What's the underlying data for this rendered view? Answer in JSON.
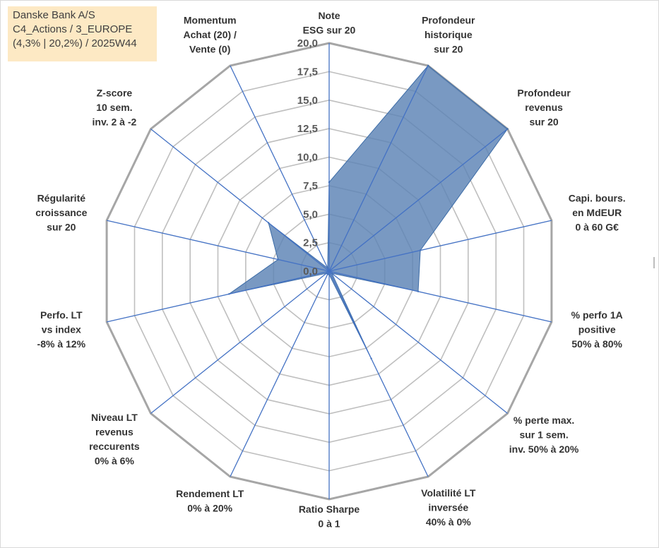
{
  "info": {
    "line1": "Danske Bank A/S",
    "line2": "C4_Actions / 3_EUROPE",
    "line3": "(4,3% | 20,2%) / 2025W44"
  },
  "chart_data": {
    "type": "radar",
    "title": "",
    "rlim": [
      0,
      20
    ],
    "ticks": [
      "0,0",
      "2,5",
      "5,0",
      "7,5",
      "10,0",
      "12,5",
      "15,0",
      "17,5",
      "20,0"
    ],
    "grid": true,
    "axes": [
      {
        "label": [
          "Note",
          "ESG sur 20"
        ],
        "value": 7.8
      },
      {
        "label": [
          "Profondeur",
          "historique",
          "sur 20"
        ],
        "value": 20
      },
      {
        "label": [
          "Profondeur",
          "revenus",
          "sur 20"
        ],
        "value": 20
      },
      {
        "label": [
          "Capi. bours.",
          "en MdEUR",
          "0 à 60 G€"
        ],
        "value": 8.2
      },
      {
        "label": [
          "% perfo 1A",
          "positive",
          "50% à 80%"
        ],
        "value": 8.0
      },
      {
        "label": [
          "% perte max.",
          "sur 1 sem.",
          "inv. 50% à 20%"
        ],
        "value": 0.3
      },
      {
        "label": [
          "Volatilité LT",
          "inversée",
          "40% à 0%"
        ],
        "value": 8.5
      },
      {
        "label": [
          "Ratio Sharpe",
          "0 à 1"
        ],
        "value": 0.3
      },
      {
        "label": [
          "Rendement LT",
          "0% à 20%"
        ],
        "value": 0.3
      },
      {
        "label": [
          "Niveau LT",
          "revenus",
          "reccurents",
          "0% à 6%"
        ],
        "value": 0.3
      },
      {
        "label": [
          "Perfo. LT",
          "vs index",
          "-8% à 12%"
        ],
        "value": 9.0
      },
      {
        "label": [
          "Régularité",
          "croissance",
          "sur 20"
        ],
        "value": 4.6
      },
      {
        "label": [
          "Z-score",
          "10 sem.",
          "inv. 2 à -2"
        ],
        "value": 6.8
      },
      {
        "label": [
          "Momentum",
          "Achat (20) /",
          "Vente (0)"
        ],
        "value": 0.3
      }
    ],
    "colors": {
      "fill": "#5b83b5",
      "fill_opacity": 0.82,
      "stroke": "#3c6ca7",
      "axis_line": "#4472c4",
      "grid_line": "#bfbfbf",
      "outer_ring": "#a6a6a6"
    }
  }
}
